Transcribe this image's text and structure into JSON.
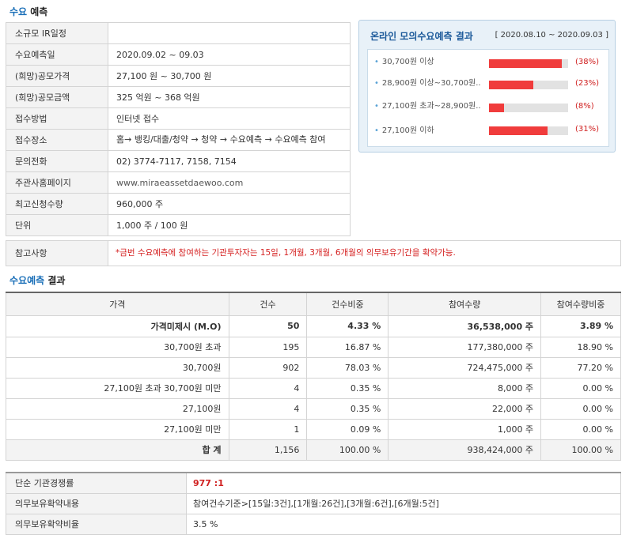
{
  "demand_title": {
    "highlight": "수요",
    "rest": " 예측"
  },
  "info_rows": [
    {
      "label": "소규모 IR일정",
      "value": ""
    },
    {
      "label": "수요예측일",
      "value": "2020.09.02 ~ 09.03"
    },
    {
      "label": "(희망)공모가격",
      "value": "27,100 원 ~ 30,700 원"
    },
    {
      "label": "(희망)공모금액",
      "value": "325 억원 ~ 368 억원"
    },
    {
      "label": "접수방법",
      "value": "인터넷 접수"
    },
    {
      "label": "접수장소",
      "value": "홈→ 뱅킹/대출/청약 → 청약 → 수요예측 → 수요예측 참여"
    },
    {
      "label": "문의전화",
      "value": "02) 3774-7117, 7158, 7154"
    },
    {
      "label": "주관사홈페이지",
      "value": "www.miraeassetdaewoo.com"
    },
    {
      "label": "최고신청수량",
      "value": "960,000 주"
    },
    {
      "label": "단위",
      "value": "1,000 주 / 100 원"
    }
  ],
  "mock": {
    "title": "온라인 모의수요예측 결과",
    "period": "[ 2020.08.10 ~ 2020.09.03 ]",
    "items": [
      {
        "label": "30,700원 이상",
        "pct_label": "(38%)",
        "level": 0.92
      },
      {
        "label": "28,900원 이상~30,700원..",
        "pct_label": "(23%)",
        "level": 0.56
      },
      {
        "label": "27,100원 초과~28,900원..",
        "pct_label": "(8%)",
        "level": 0.19
      },
      {
        "label": "27,100원 이하",
        "pct_label": "(31%)",
        "level": 0.74
      }
    ],
    "bar_color": "#f03c3c"
  },
  "reference": {
    "label": "참고사항",
    "value": "*금번 수요예측에 참여하는 기관투자자는 15일, 1개월, 3개월, 6개월의 의무보유기간을 확약가능."
  },
  "result_title": {
    "highlight": "수요예측",
    "rest": " 결과"
  },
  "result_table": {
    "headers": [
      "가격",
      "건수",
      "건수비중",
      "참여수량",
      "참여수량비중"
    ],
    "rows": [
      [
        "가격미제시 (M.O)",
        "50",
        "4.33 %",
        "36,538,000 주",
        "3.89 %"
      ],
      [
        "30,700원 초과",
        "195",
        "16.87 %",
        "177,380,000 주",
        "18.90 %"
      ],
      [
        "30,700원",
        "902",
        "78.03 %",
        "724,475,000 주",
        "77.20 %"
      ],
      [
        "27,100원 초과 30,700원 미만",
        "4",
        "0.35 %",
        "8,000 주",
        "0.00 %"
      ],
      [
        "27,100원",
        "4",
        "0.35 %",
        "22,000 주",
        "0.00 %"
      ],
      [
        "27,100원 미만",
        "1",
        "0.09 %",
        "1,000 주",
        "0.00 %"
      ]
    ],
    "total": [
      "합 계",
      "1,156",
      "100.00 %",
      "938,424,000 주",
      "100.00 %"
    ]
  },
  "competition": [
    {
      "label": "단순 기관경쟁률",
      "value": "977 :1"
    },
    {
      "label": "의무보유확약내용",
      "value": "참여건수기준>[15일:3건],[1개월:26건],[3개월:6건],[6개월:5건]"
    },
    {
      "label": "의무보유확약비율",
      "value": "3.5 %"
    }
  ]
}
